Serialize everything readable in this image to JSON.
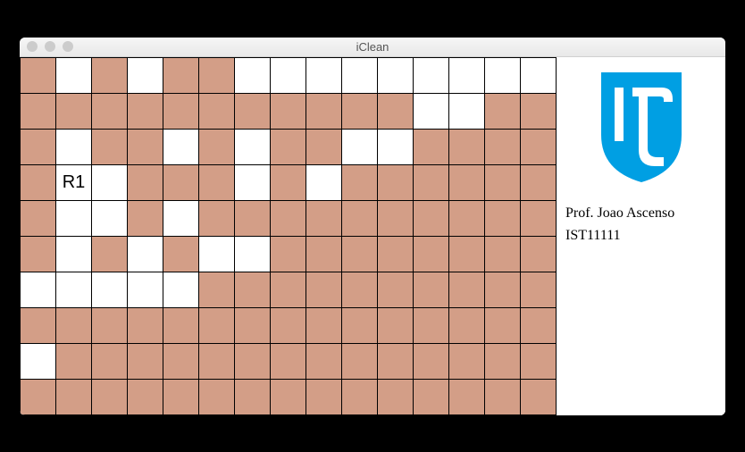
{
  "window": {
    "title": "iClean"
  },
  "grid": {
    "rows": 10,
    "cols": 15,
    "cell_size": 40,
    "border_color": "#000000",
    "filled_color": "#d39e87",
    "empty_color": "#ffffff",
    "cells": [
      [
        1,
        0,
        1,
        0,
        1,
        1,
        0,
        0,
        0,
        0,
        0,
        0,
        0,
        0,
        0
      ],
      [
        1,
        1,
        1,
        1,
        1,
        1,
        1,
        1,
        1,
        1,
        1,
        0,
        0,
        1,
        1
      ],
      [
        1,
        0,
        1,
        1,
        0,
        1,
        0,
        1,
        1,
        0,
        0,
        1,
        1,
        1,
        1
      ],
      [
        1,
        0,
        0,
        1,
        1,
        1,
        0,
        1,
        0,
        1,
        1,
        1,
        1,
        1,
        1
      ],
      [
        1,
        0,
        0,
        1,
        0,
        1,
        1,
        1,
        1,
        1,
        1,
        1,
        1,
        1,
        1
      ],
      [
        1,
        0,
        1,
        0,
        1,
        0,
        0,
        1,
        1,
        1,
        1,
        1,
        1,
        1,
        1
      ],
      [
        0,
        0,
        0,
        0,
        0,
        1,
        1,
        1,
        1,
        1,
        1,
        1,
        1,
        1,
        1
      ],
      [
        1,
        1,
        1,
        1,
        1,
        1,
        1,
        1,
        1,
        1,
        1,
        1,
        1,
        1,
        1
      ],
      [
        0,
        1,
        1,
        1,
        1,
        1,
        1,
        1,
        1,
        1,
        1,
        1,
        1,
        1,
        1
      ],
      [
        1,
        1,
        1,
        1,
        1,
        1,
        1,
        1,
        1,
        1,
        1,
        1,
        1,
        1,
        1
      ]
    ],
    "labels": [
      {
        "row": 3,
        "col": 1,
        "text": "R1"
      }
    ]
  },
  "sidebar": {
    "logo_color": "#009fe3",
    "line1": "Prof. Joao Ascenso",
    "line2": "IST11111"
  }
}
